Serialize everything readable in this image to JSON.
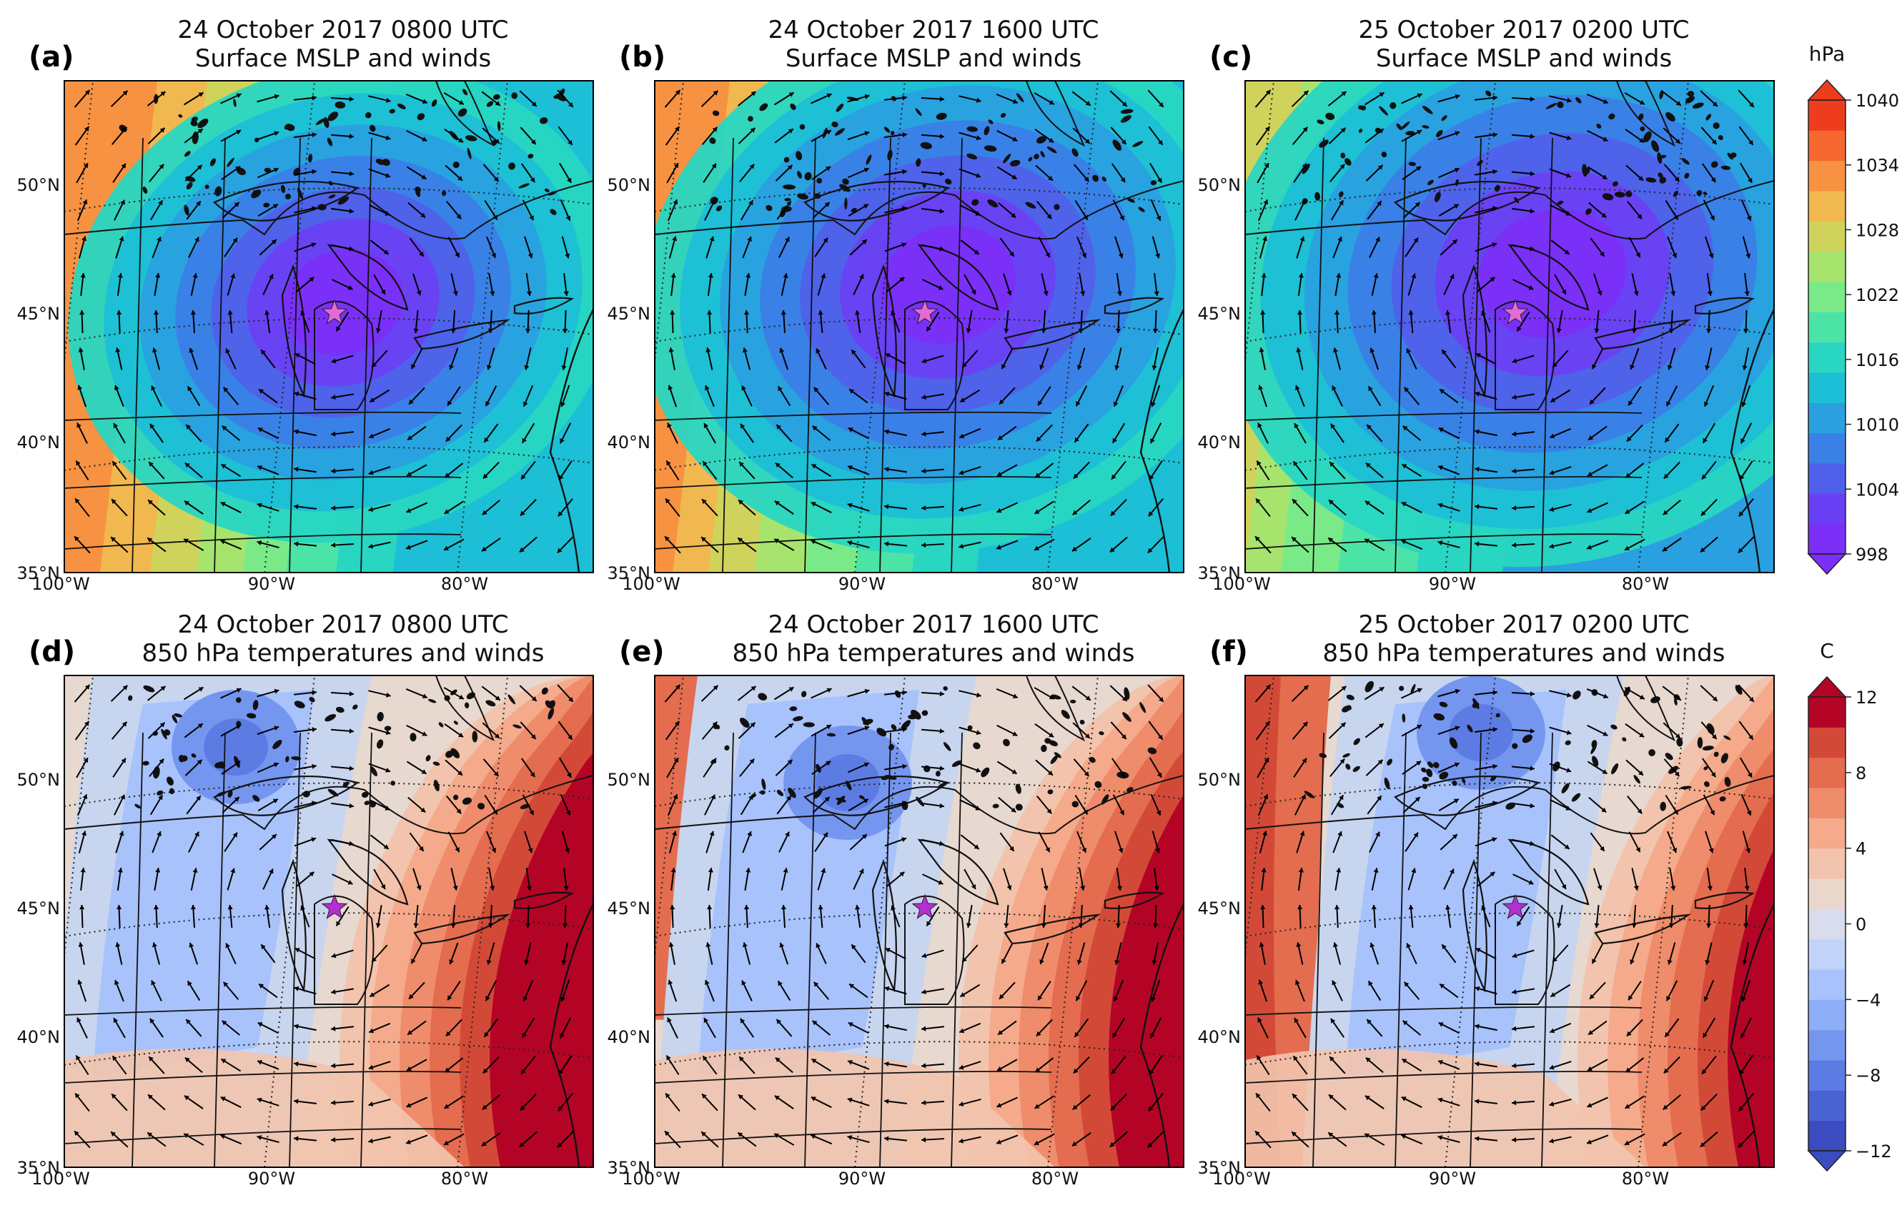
{
  "panels": [
    {
      "letter": "(a)",
      "title1": "24 October 2017 0800 UTC",
      "title2": "Surface MSLP and winds",
      "field": "mslp",
      "phase": 0
    },
    {
      "letter": "(b)",
      "title1": "24 October 2017 1600 UTC",
      "title2": "Surface MSLP and winds",
      "field": "mslp",
      "phase": 1
    },
    {
      "letter": "(c)",
      "title1": "25 October 2017 0200 UTC",
      "title2": "Surface MSLP and winds",
      "field": "mslp",
      "phase": 2
    },
    {
      "letter": "(d)",
      "title1": "24 October 2017 0800 UTC",
      "title2": "850 hPa temperatures and winds",
      "field": "t850",
      "phase": 0
    },
    {
      "letter": "(e)",
      "title1": "24 October 2017 1600 UTC",
      "title2": "850 hPa temperatures and winds",
      "field": "t850",
      "phase": 1
    },
    {
      "letter": "(f)",
      "title1": "25 October 2017 0200 UTC",
      "title2": "850 hPa temperatures and winds",
      "field": "t850",
      "phase": 2
    }
  ],
  "lat_labels": [
    "50°N",
    "45°N",
    "40°N",
    "35°N"
  ],
  "lon_labels": [
    "100°W",
    "90°W",
    "80°W"
  ],
  "colorbars": [
    {
      "unit": "hPa",
      "min": 998,
      "max": 1040,
      "ticks": [
        "1040",
        "1034",
        "1028",
        "1022",
        "1016",
        "1010",
        "1004",
        "998"
      ],
      "colors": [
        "#7b2ff7",
        "#6a40f4",
        "#4f60ea",
        "#3a80e6",
        "#2aa0e0",
        "#1cbfd6",
        "#28d6c2",
        "#4ce4a6",
        "#7aea88",
        "#a6e46e",
        "#cfd35c",
        "#f0b84f",
        "#f79242",
        "#f66830",
        "#ee3d1e"
      ]
    },
    {
      "unit": "C",
      "min": -12,
      "max": 12,
      "ticks": [
        "12",
        "8",
        "4",
        "0",
        "−4",
        "−8",
        "−12"
      ],
      "colors": [
        "#3a4cc0",
        "#4a63d3",
        "#5d7ce3",
        "#7596ef",
        "#8eaef7",
        "#a8c2fb",
        "#c1d3f9",
        "#d8dcec",
        "#ead7cc",
        "#f2c4ad",
        "#f4aa8b",
        "#ef8c6b",
        "#e46c4f",
        "#d24a37",
        "#b40426"
      ]
    }
  ],
  "star_label": "star-marker",
  "colors": {
    "star_mslp": "#e36bd3",
    "star_t850": "#b52fd0"
  }
}
